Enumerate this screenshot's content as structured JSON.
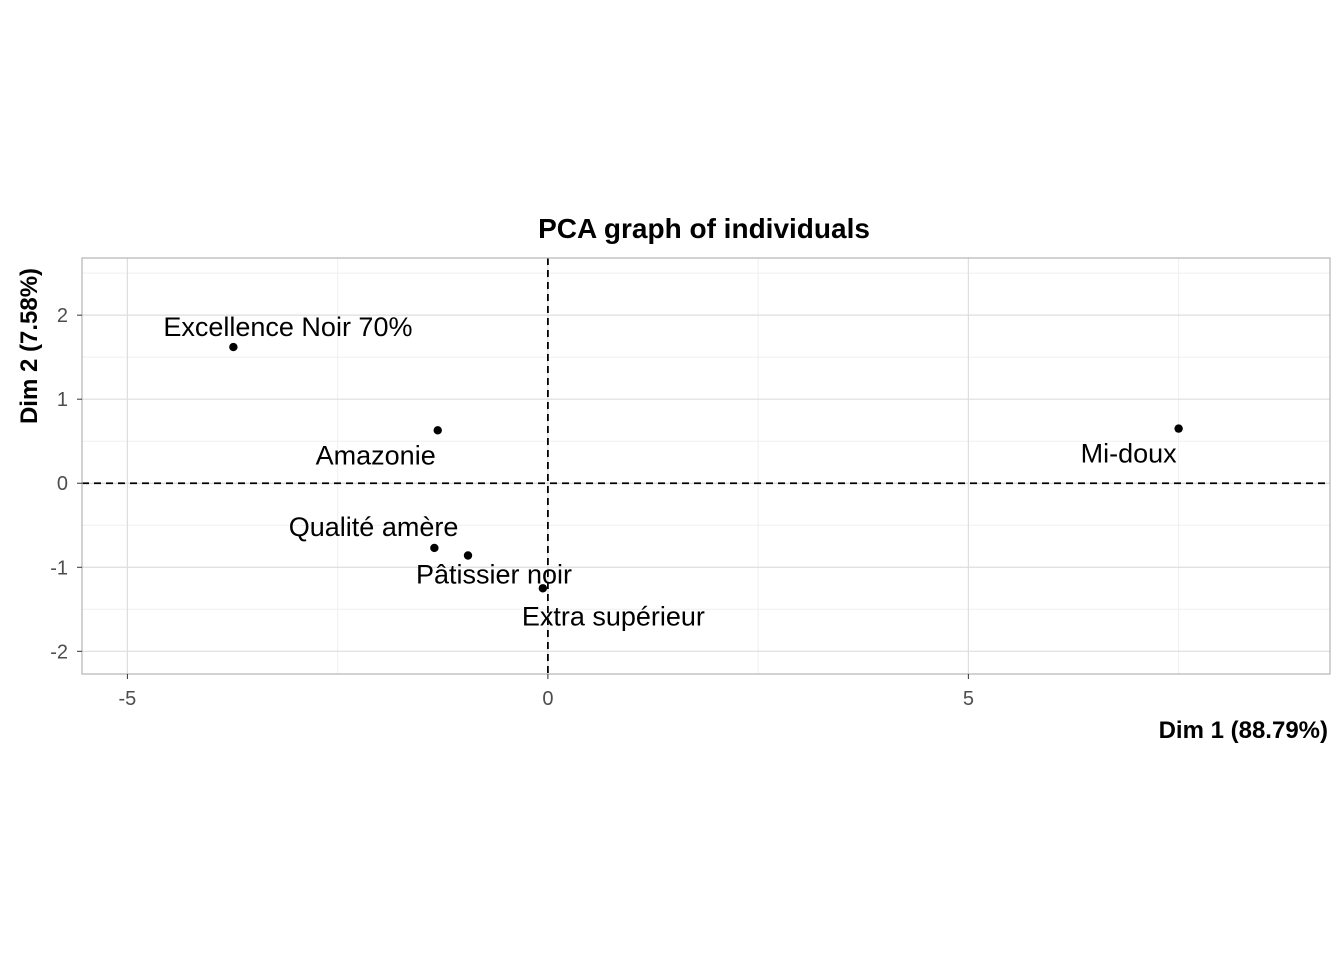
{
  "chart_data": {
    "type": "scatter",
    "title": "PCA graph of individuals",
    "xlabel": "Dim 1 (88.79%)",
    "ylabel": "Dim 2 (7.58%)",
    "xlim": [
      -5.54,
      9.3
    ],
    "ylim": [
      -2.27,
      2.68
    ],
    "x_ticks": [
      -5,
      0,
      5
    ],
    "y_ticks": [
      -2,
      -1,
      0,
      1,
      2
    ],
    "grid": true,
    "reference_lines": {
      "x": 0,
      "y": 0,
      "style": "dashed"
    },
    "points": [
      {
        "name": "Excellence Noir 70%",
        "x": -3.74,
        "y": 1.62,
        "label_pos": "top-right"
      },
      {
        "name": "Amazonie",
        "x": -1.31,
        "y": 0.63,
        "label_pos": "bottom-left"
      },
      {
        "name": "Mi-doux",
        "x": 7.5,
        "y": 0.65,
        "label_pos": "bottom-left"
      },
      {
        "name": "Qualité amère",
        "x": -1.35,
        "y": -0.77,
        "label_pos": "top-left"
      },
      {
        "name": "Pâtissier noir",
        "x": -0.95,
        "y": -0.86,
        "label_pos": "bottom"
      },
      {
        "name": "Extra supérieur",
        "x": -0.06,
        "y": -1.25,
        "label_pos": "bottom-right"
      }
    ],
    "colors": {
      "point": "#000000",
      "grid_major": "#dedede",
      "grid_minor": "#efefef",
      "panel_border": "#b3b3b3",
      "reference_line": "#000000"
    }
  }
}
